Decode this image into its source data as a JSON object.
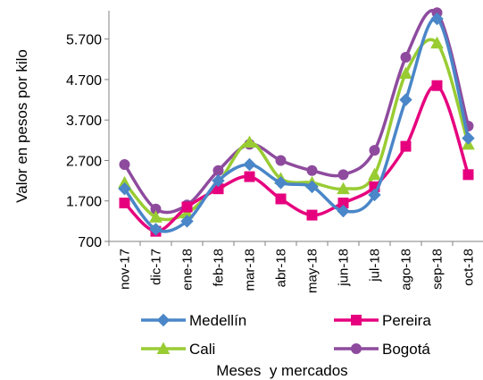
{
  "chart_data": {
    "type": "line",
    "title": "",
    "xlabel": "Meses  y mercados",
    "ylabel": "Valor en pesos por kilo",
    "ylim": [
      700,
      6400
    ],
    "yticks": [
      700,
      1700,
      2700,
      3700,
      4700,
      5700
    ],
    "ytick_labels": [
      "700",
      "1.700",
      "2.700",
      "3.700",
      "4.700",
      "5.700"
    ],
    "categories": [
      "nov-17",
      "dic-17",
      "ene-18",
      "feb-18",
      "mar-18",
      "abr-18",
      "may-18",
      "jun-18",
      "jul-18",
      "ago-18",
      "sep-18",
      "oct-18"
    ],
    "grid": false,
    "legend_position": "bottom",
    "series": [
      {
        "name": "Medellín",
        "color": "#4a86c8",
        "marker": "diamond",
        "values": [
          2000,
          1000,
          1200,
          2200,
          2600,
          2150,
          2050,
          1450,
          1850,
          4200,
          6200,
          3250
        ]
      },
      {
        "name": "Pereira",
        "color": "#e6007e",
        "marker": "square",
        "values": [
          1650,
          950,
          1550,
          2000,
          2300,
          1750,
          1350,
          1650,
          2050,
          3050,
          4550,
          2350
        ]
      },
      {
        "name": "Cali",
        "color": "#99cc33",
        "marker": "triangle",
        "values": [
          2150,
          1300,
          1400,
          2150,
          3150,
          2250,
          2150,
          2000,
          2350,
          4850,
          5600,
          3100
        ]
      },
      {
        "name": "Bogotá",
        "color": "#8e4b9e",
        "marker": "circle",
        "values": [
          2600,
          1500,
          1600,
          2450,
          3100,
          2700,
          2450,
          2350,
          2950,
          5250,
          6350,
          3550
        ]
      }
    ]
  }
}
